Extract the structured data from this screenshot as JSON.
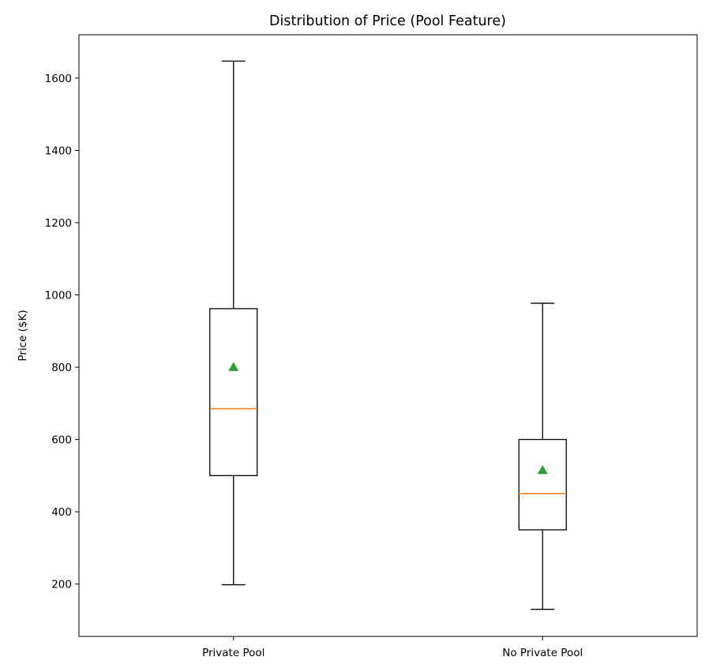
{
  "chart_data": {
    "type": "box",
    "title": "Distribution of Price (Pool Feature)",
    "xlabel": "",
    "ylabel": "Price ($K)",
    "ylim": [
      55,
      1720
    ],
    "yticks": [
      200,
      400,
      600,
      800,
      1000,
      1200,
      1400,
      1600
    ],
    "grid": false,
    "categories": [
      "Private Pool",
      "No Private Pool"
    ],
    "boxes": [
      {
        "category": "Private Pool",
        "whisker_low": 198,
        "q1": 500,
        "median": 685,
        "q3": 962,
        "whisker_high": 1647,
        "mean": 800
      },
      {
        "category": "No Private Pool",
        "whisker_low": 130,
        "q1": 350,
        "median": 450,
        "q3": 600,
        "whisker_high": 977,
        "mean": 515
      }
    ],
    "colors": {
      "box": "#000000",
      "median": "#ff7f0e",
      "mean": "#2ca02c"
    }
  }
}
